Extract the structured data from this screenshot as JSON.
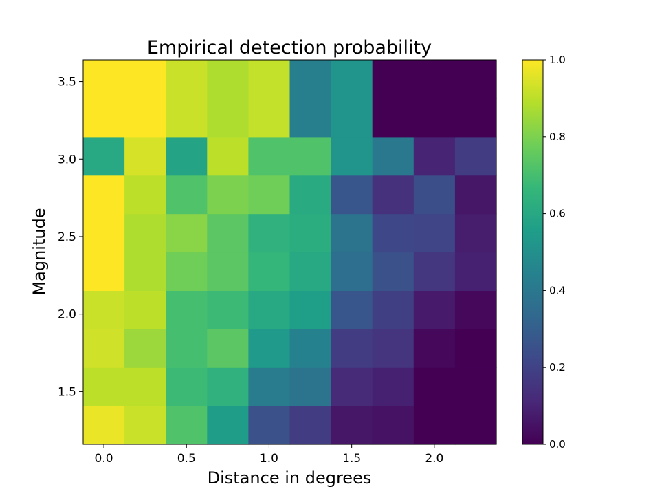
{
  "chart_data": {
    "type": "heatmap",
    "title": "Empirical detection probability",
    "xlabel": "Distance in degrees",
    "ylabel": "Magnitude",
    "x_centers": [
      0.0,
      0.25,
      0.5,
      0.75,
      1.0,
      1.25,
      1.5,
      1.75,
      2.0,
      2.25
    ],
    "y_centers": [
      1.284,
      1.532,
      1.78,
      2.028,
      2.276,
      2.524,
      2.772,
      3.02,
      3.268,
      3.516
    ],
    "xlim": [
      -0.125,
      2.375
    ],
    "ylim": [
      1.16,
      3.64
    ],
    "xticks": [
      0.0,
      0.5,
      1.0,
      1.5,
      2.0
    ],
    "xtick_labels": [
      "0.0",
      "0.5",
      "1.0",
      "1.5",
      "2.0"
    ],
    "yticks": [
      1.5,
      2.0,
      2.5,
      3.0,
      3.5
    ],
    "ytick_labels": [
      "1.5",
      "2.0",
      "2.5",
      "3.0",
      "3.5"
    ],
    "values": [
      [
        0.97,
        0.92,
        0.72,
        0.55,
        0.25,
        0.18,
        0.06,
        0.05,
        0.0,
        0.0
      ],
      [
        0.9,
        0.9,
        0.68,
        0.64,
        0.42,
        0.38,
        0.12,
        0.09,
        0.0,
        0.0
      ],
      [
        0.93,
        0.85,
        0.7,
        0.74,
        0.54,
        0.44,
        0.18,
        0.15,
        0.02,
        0.0
      ],
      [
        0.92,
        0.9,
        0.7,
        0.68,
        0.6,
        0.56,
        0.27,
        0.19,
        0.07,
        0.02
      ],
      [
        1.0,
        0.88,
        0.78,
        0.74,
        0.66,
        0.6,
        0.36,
        0.25,
        0.16,
        0.09
      ],
      [
        1.0,
        0.88,
        0.82,
        0.74,
        0.64,
        0.62,
        0.38,
        0.22,
        0.21,
        0.08
      ],
      [
        1.0,
        0.9,
        0.72,
        0.8,
        0.78,
        0.61,
        0.27,
        0.14,
        0.24,
        0.06
      ],
      [
        0.6,
        0.94,
        0.58,
        0.9,
        0.72,
        0.72,
        0.52,
        0.4,
        0.1,
        0.18
      ],
      [
        1.0,
        1.0,
        0.92,
        0.88,
        0.91,
        0.43,
        0.52,
        0.0,
        0.0,
        0.0
      ],
      [
        1.0,
        1.0,
        0.92,
        0.88,
        0.91,
        0.43,
        0.52,
        0.0,
        0.0,
        0.0
      ]
    ],
    "value_range": [
      0.0,
      1.0
    ],
    "colormap": "viridis",
    "colorbar": {
      "ticks": [
        0.0,
        0.2,
        0.4,
        0.6,
        0.8,
        1.0
      ],
      "tick_labels": [
        "0.0",
        "0.2",
        "0.4",
        "0.6",
        "0.8",
        "1.0"
      ]
    },
    "grid": false
  }
}
